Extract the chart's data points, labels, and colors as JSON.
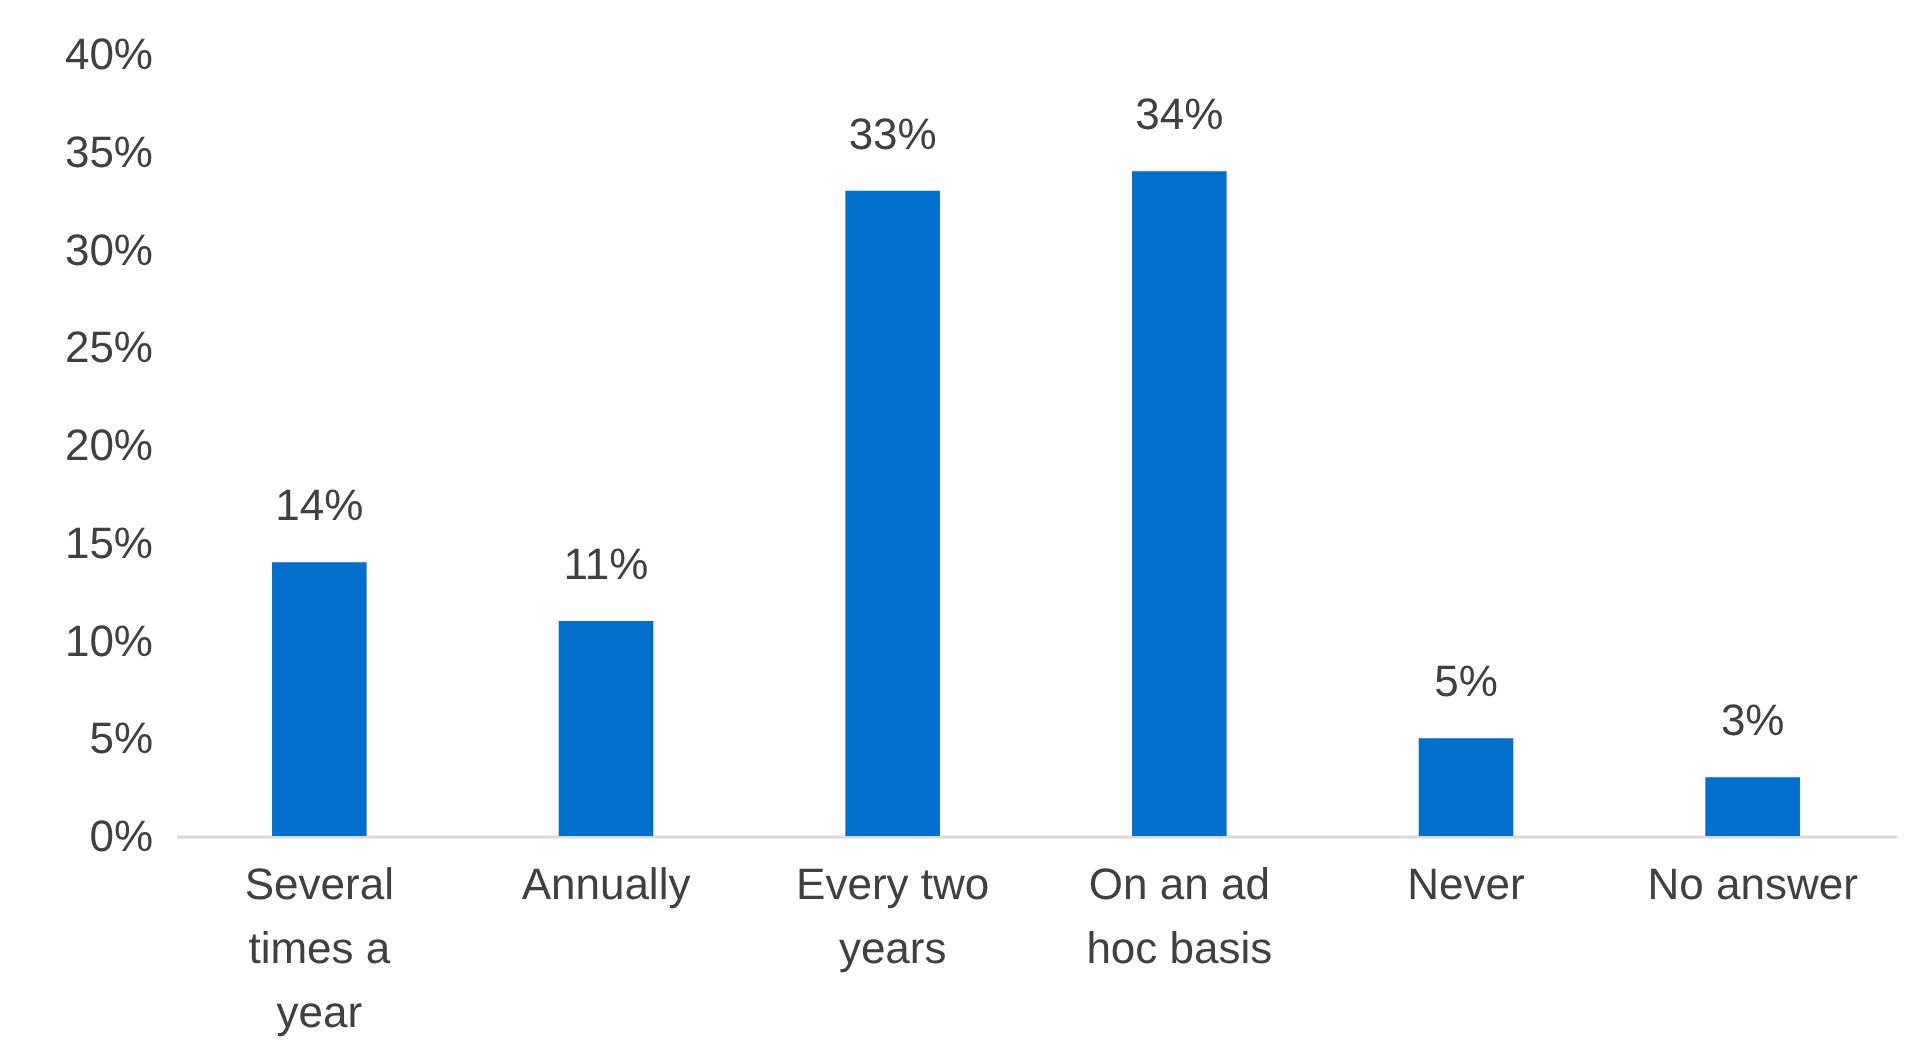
{
  "chart_data": {
    "type": "bar",
    "categories": [
      "Several times a year",
      "Annually",
      "Every two years",
      "On an ad hoc basis",
      "Never",
      "No answer"
    ],
    "values": [
      14,
      11,
      33,
      34,
      5,
      3
    ],
    "value_labels": [
      "14%",
      "11%",
      "33%",
      "34%",
      "5%",
      "3%"
    ],
    "color": "#0070cc",
    "ylim": [
      0,
      40
    ],
    "yticks": [
      {
        "value": 0,
        "label": "0%"
      },
      {
        "value": 5,
        "label": "5%"
      },
      {
        "value": 10,
        "label": "10%"
      },
      {
        "value": 15,
        "label": "15%"
      },
      {
        "value": 20,
        "label": "20%"
      },
      {
        "value": 25,
        "label": "25%"
      },
      {
        "value": 30,
        "label": "30%"
      },
      {
        "value": 35,
        "label": "35%"
      },
      {
        "value": 40,
        "label": "40%"
      }
    ],
    "grid": false
  }
}
